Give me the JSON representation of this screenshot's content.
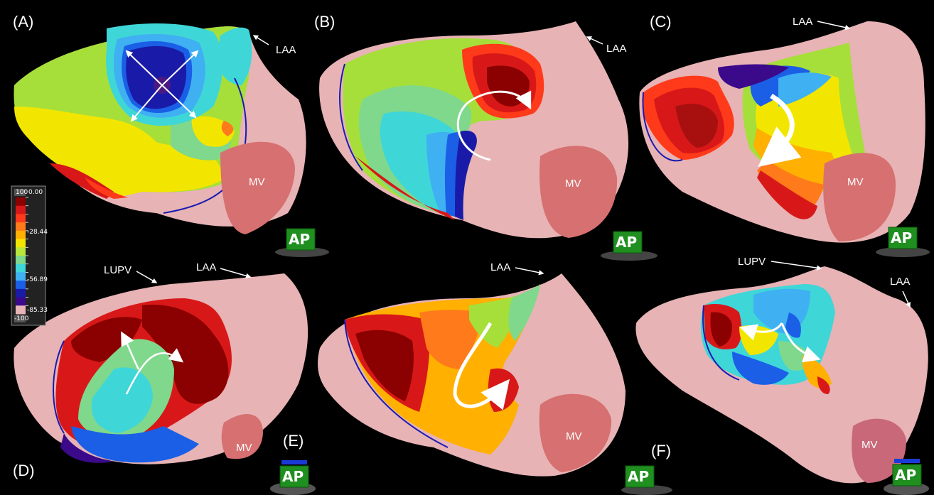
{
  "panel_labels": [
    "(A)",
    "(B)",
    "(C)",
    "(D)",
    "(E)",
    "(F)"
  ],
  "annotations": {
    "laa": "LAA",
    "lupv": "LUPV",
    "mv": "MV"
  },
  "orientation_badge": "AP",
  "colorbar": {
    "top_box": "100",
    "bottom_box": "-100",
    "ticks": [
      "0.00",
      "-28.44",
      "-56.89",
      "-85.33"
    ],
    "colors": [
      "#8b0000",
      "#d81818",
      "#ff3a1a",
      "#ff7a1a",
      "#ffb000",
      "#f2e600",
      "#b8e63a",
      "#7fd88c",
      "#3fd6d8",
      "#3fb0f2",
      "#1a5fe6",
      "#1a1aa8",
      "#3a0a8a",
      "#e8b4b8"
    ]
  },
  "colors": {
    "background": "#000000",
    "tissue": "#e7b3b5",
    "mitral_valve": "#d77070",
    "badge_green": "#1f8f1f",
    "border_blue": "#1a1ab0"
  }
}
